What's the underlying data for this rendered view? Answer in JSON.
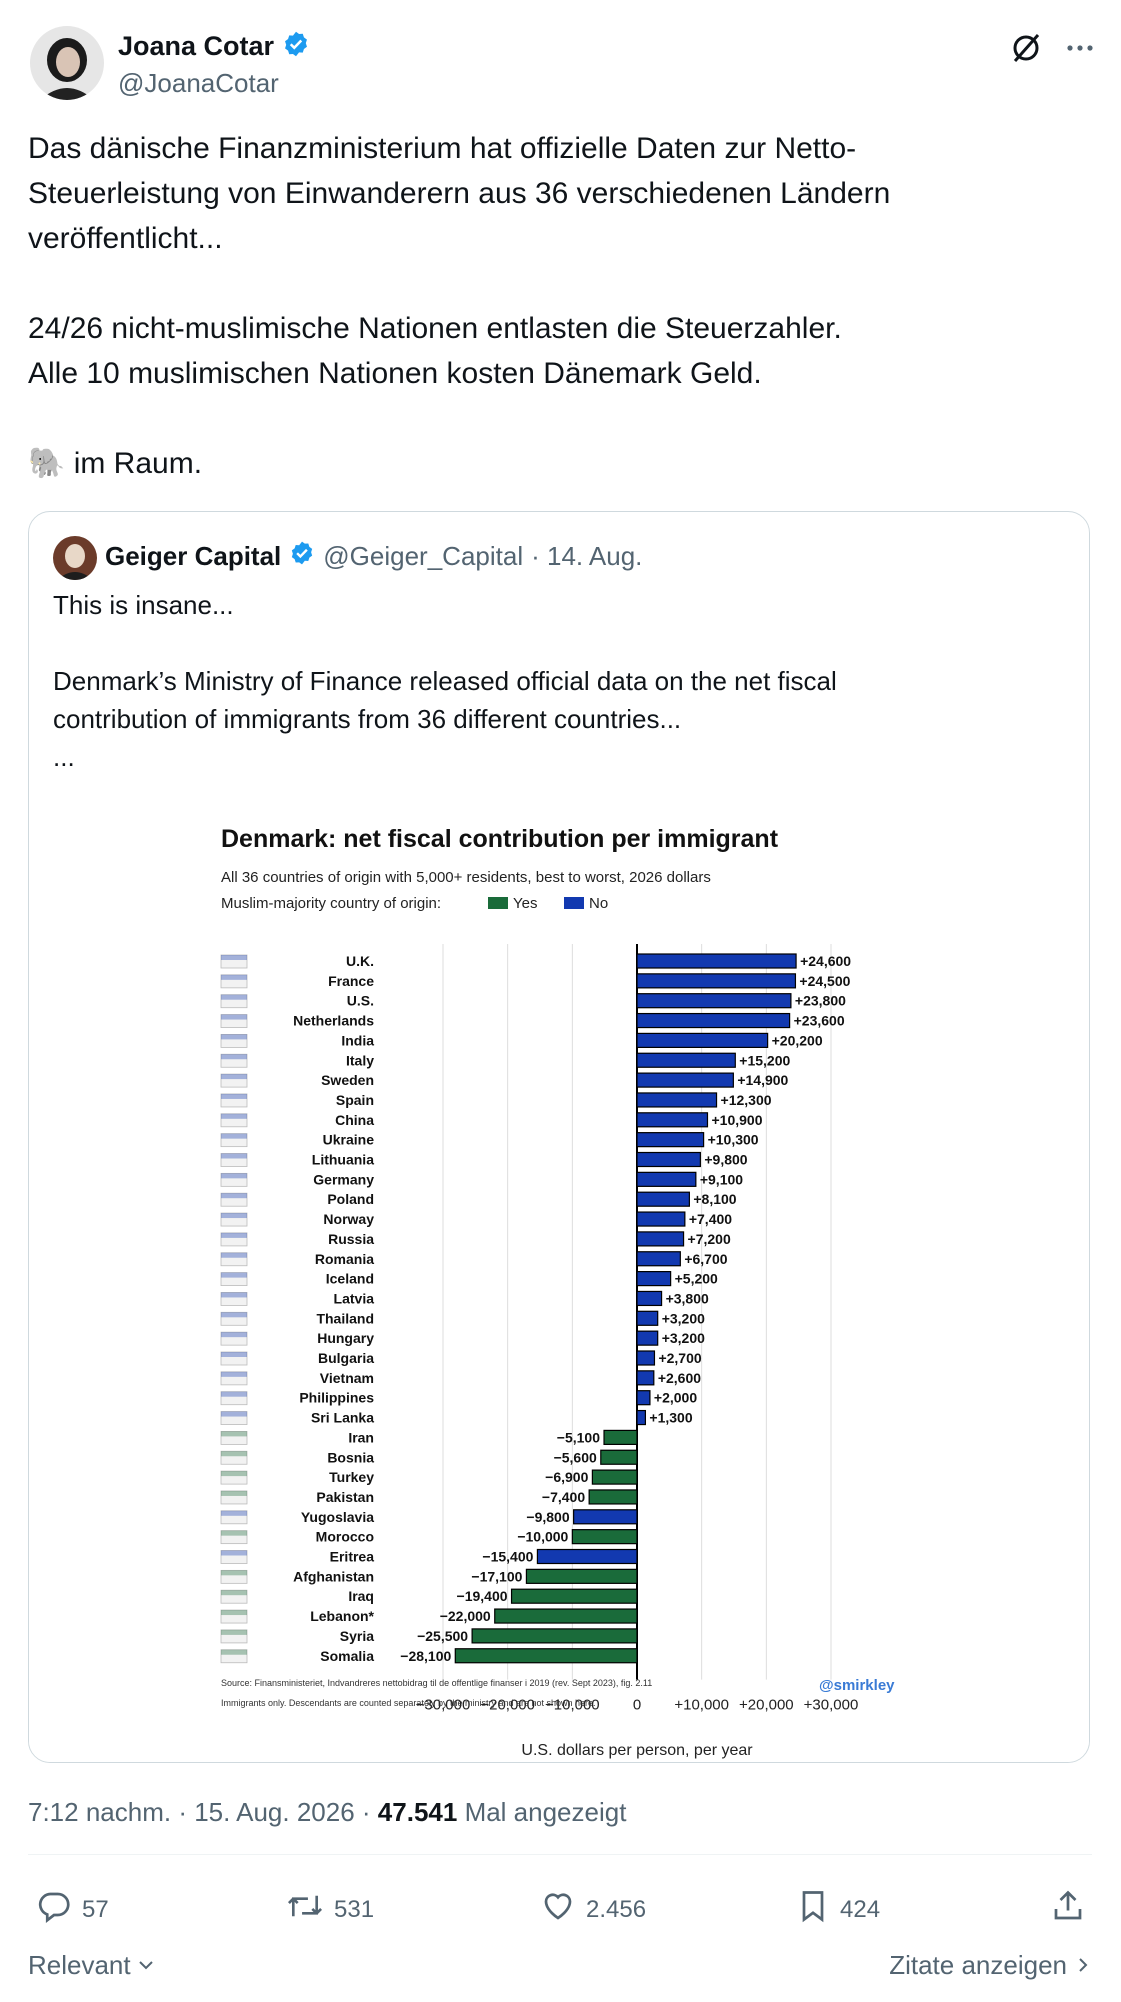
{
  "author": {
    "name": "Joana Cotar",
    "handle": "@JoanaCotar"
  },
  "tweet": {
    "text": "Das dänische Finanzministerium hat offizielle Daten zur Netto-\nSteuerleistung von Einwanderern aus 36 verschiedenen Ländern\nveröffentlicht...\n\n24/26 nicht-muslimische Nationen entlasten die Steuerzahler.\nAlle 10 muslimischen Nationen kosten Dänemark Geld.\n\n🐘 im Raum."
  },
  "quoted": {
    "name": "Geiger Capital",
    "handle": "@Geiger_Capital",
    "date": "· 14. Aug.",
    "text": "This is insane...\n\nDenmark’s Ministry of Finance released official data on the net fiscal\ncontribution of immigrants from 36 different countries...\n..."
  },
  "chart_data": {
    "type": "bar",
    "orientation": "horizontal",
    "title": "Denmark: net fiscal contribution per immigrant",
    "subtitle": "All 36 countries of origin with 5,000+ residents, best to worst, 2026 dollars",
    "legend_label": "Muslim-majority country of origin:",
    "legend": [
      {
        "label": "Yes",
        "color": "#1a6b3a"
      },
      {
        "label": "No",
        "color": "#1239b0"
      }
    ],
    "xlabel": "U.S. dollars per person, per year",
    "xlim": [
      -30000,
      30000
    ],
    "ticks": [
      "−30,000",
      "−20,000",
      "−10,000",
      "0",
      "+10,000",
      "+20,000",
      "+30,000"
    ],
    "tick_values": [
      -30000,
      -20000,
      -10000,
      0,
      10000,
      20000,
      30000
    ],
    "categories": [
      "U.K.",
      "France",
      "U.S.",
      "Netherlands",
      "India",
      "Italy",
      "Sweden",
      "Spain",
      "China",
      "Ukraine",
      "Lithuania",
      "Germany",
      "Poland",
      "Norway",
      "Russia",
      "Romania",
      "Iceland",
      "Latvia",
      "Thailand",
      "Hungary",
      "Bulgaria",
      "Vietnam",
      "Philippines",
      "Sri Lanka",
      "Iran",
      "Bosnia",
      "Turkey",
      "Pakistan",
      "Yugoslavia",
      "Morocco",
      "Eritrea",
      "Afghanistan",
      "Iraq",
      "Lebanon*",
      "Syria",
      "Somalia"
    ],
    "values": [
      24600,
      24500,
      23800,
      23600,
      20200,
      15200,
      14900,
      12300,
      10900,
      10300,
      9800,
      9100,
      8100,
      7400,
      7200,
      6700,
      5200,
      3800,
      3200,
      3200,
      2700,
      2600,
      2000,
      1300,
      -5100,
      -5600,
      -6900,
      -7400,
      -9800,
      -10000,
      -15400,
      -17100,
      -19400,
      -22000,
      -25500,
      -28100
    ],
    "labels": [
      "+24,600",
      "+24,500",
      "+23,800",
      "+23,600",
      "+20,200",
      "+15,200",
      "+14,900",
      "+12,300",
      "+10,900",
      "+10,300",
      "+9,800",
      "+9,100",
      "+8,100",
      "+7,400",
      "+7,200",
      "+6,700",
      "+5,200",
      "+3,800",
      "+3,200",
      "+3,200",
      "+2,700",
      "+2,600",
      "+2,000",
      "+1,300",
      "−5,100",
      "−5,600",
      "−6,900",
      "−7,400",
      "−9,800",
      "−10,000",
      "−15,400",
      "−17,100",
      "−19,400",
      "−22,000",
      "−25,500",
      "−28,100"
    ],
    "muslim_majority": [
      false,
      false,
      false,
      false,
      false,
      false,
      false,
      false,
      false,
      false,
      false,
      false,
      false,
      false,
      false,
      false,
      false,
      false,
      false,
      false,
      false,
      false,
      false,
      false,
      true,
      true,
      true,
      true,
      false,
      true,
      false,
      true,
      true,
      true,
      true,
      true
    ],
    "source": "Source: Finansministeriet, Indvandreres nettobidrag til de offentlige finanser i 2019 (rev. Sept 2023), fig. 2.11",
    "note": "Immigrants only. Descendants are counted separately by the ministry and are not shown here.",
    "watermark": "@smirkley",
    "grid": true
  },
  "meta": {
    "time": "7:12 nachm. · 15. Aug. 2026 ·",
    "views": "47.541",
    "views_label": "Mal angezeigt"
  },
  "actions": {
    "replies": "57",
    "retweets": "531",
    "likes": "2.456",
    "bookmarks": "424"
  },
  "footer": {
    "sort_label": "Relevant",
    "quotes_link": "Zitate anzeigen"
  },
  "colors": {
    "verified": "#1d9bf0",
    "secondary_text": "#536471",
    "bar_yes": "#1a6b3a",
    "bar_no": "#1239b0"
  }
}
